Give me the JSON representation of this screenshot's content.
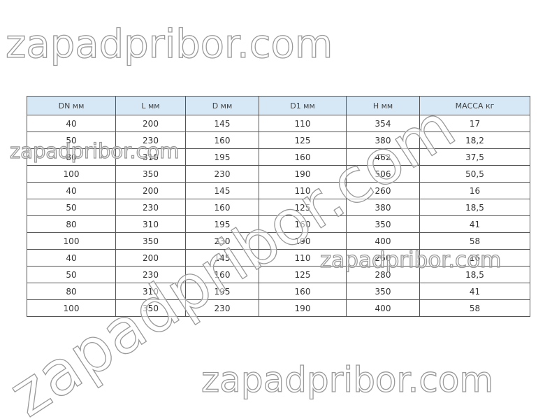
{
  "table": {
    "headers": [
      "DN мм",
      "L мм",
      "D мм",
      "D1 мм",
      "H мм",
      "МАССА кг"
    ],
    "rows": [
      [
        "40",
        "200",
        "145",
        "110",
        "354",
        "17"
      ],
      [
        "50",
        "230",
        "160",
        "125",
        "380",
        "18,2"
      ],
      [
        "80",
        "310",
        "195",
        "160",
        "462",
        "37,5"
      ],
      [
        "100",
        "350",
        "230",
        "190",
        "506",
        "50,5"
      ],
      [
        "40",
        "200",
        "145",
        "110",
        "260",
        "16"
      ],
      [
        "50",
        "230",
        "160",
        "125",
        "380",
        "18,5"
      ],
      [
        "80",
        "310",
        "195",
        "160",
        "350",
        "41"
      ],
      [
        "100",
        "350",
        "230",
        "190",
        "400",
        "58"
      ],
      [
        "40",
        "200",
        "145",
        "110",
        "260",
        "16"
      ],
      [
        "50",
        "230",
        "160",
        "125",
        "280",
        "18,5"
      ],
      [
        "80",
        "310",
        "195",
        "160",
        "350",
        "41"
      ],
      [
        "100",
        "350",
        "230",
        "190",
        "400",
        "58"
      ]
    ]
  },
  "watermark": "zapadpribor.com",
  "colors": {
    "header_bg": "#d6e8f5",
    "border": "#555555"
  }
}
